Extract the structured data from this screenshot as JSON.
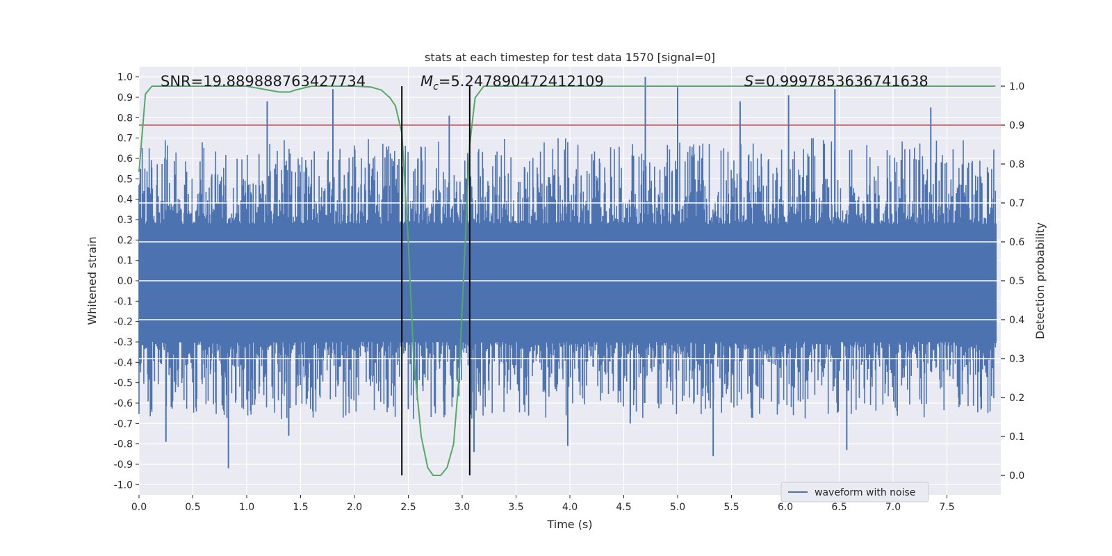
{
  "chart_data": {
    "type": "line",
    "title": "stats at each timestep for test data 1570 [signal=0]",
    "xlabel": "Time (s)",
    "ylabel": "Whitened strain",
    "y2label": "Detection probability",
    "xlim": [
      0.0,
      8.0
    ],
    "ylim": [
      -1.05,
      1.05
    ],
    "y2lim": [
      -0.05,
      1.05
    ],
    "x_ticks": [
      "0.0",
      "0.5",
      "1.0",
      "1.5",
      "2.0",
      "2.5",
      "3.0",
      "3.5",
      "4.0",
      "4.5",
      "5.0",
      "5.5",
      "6.0",
      "6.5",
      "7.0",
      "7.5"
    ],
    "y_ticks": [
      "1.0",
      "0.9",
      "0.8",
      "0.7",
      "0.6",
      "0.5",
      "0.4",
      "0.3",
      "0.2",
      "0.1",
      "0.0",
      "-0.1",
      "-0.2",
      "-0.3",
      "-0.4",
      "-0.5",
      "-0.6",
      "-0.7",
      "-0.8",
      "-0.9",
      "-1.0"
    ],
    "y2_ticks": [
      "1.0",
      "0.9",
      "0.8",
      "0.7",
      "0.6",
      "0.5",
      "0.4",
      "0.3",
      "0.2",
      "0.1",
      "0.0"
    ],
    "grid": true,
    "legend": {
      "position": "lower-right",
      "entries": [
        "waveform with noise"
      ]
    },
    "annotations": {
      "snr": {
        "label": "SNR",
        "value": "19.889888763427734"
      },
      "mc": {
        "label": "M",
        "subscript": "c",
        "value": "5.247890472412109"
      },
      "s": {
        "label": "S",
        "value": "0.9997853636741638"
      }
    },
    "threshold_y2": 0.9,
    "event_window_x": [
      2.44,
      3.07
    ],
    "series": [
      {
        "name": "waveform with noise",
        "axis": "left",
        "representation": "noise-like strain, peaks listed",
        "peaks": [
          [
            1.19,
            0.88
          ],
          [
            1.8,
            0.94
          ],
          [
            2.59,
            0.6
          ],
          [
            2.88,
            0.81
          ],
          [
            4.7,
            1.0
          ],
          [
            5.0,
            0.95
          ],
          [
            5.58,
            0.88
          ],
          [
            6.03,
            0.91
          ],
          [
            6.46,
            0.94
          ],
          [
            7.35,
            0.85
          ],
          [
            0.83,
            -0.92
          ],
          [
            0.25,
            -0.79
          ],
          [
            1.39,
            -0.76
          ],
          [
            3.11,
            -0.84
          ],
          [
            3.98,
            -0.81
          ],
          [
            5.33,
            -0.86
          ],
          [
            6.57,
            -0.83
          ],
          [
            2.5,
            -0.63
          ],
          [
            4.56,
            -0.7
          ]
        ],
        "color": "#4c72b0"
      },
      {
        "name": "",
        "axis": "right",
        "color": "#55a868",
        "x": [
          0.0,
          0.06,
          0.12,
          0.3,
          0.6,
          1.0,
          1.2,
          1.3,
          1.35,
          1.4,
          1.45,
          1.6,
          2.0,
          2.15,
          2.25,
          2.33,
          2.38,
          2.44,
          2.5,
          2.55,
          2.62,
          2.68,
          2.73,
          2.8,
          2.86,
          2.92,
          2.97,
          3.02,
          3.07,
          3.12,
          3.2,
          3.35,
          4.0,
          5.0,
          6.0,
          7.0,
          7.95
        ],
        "y": [
          0.78,
          0.98,
          1.0,
          1.0,
          1.0,
          1.0,
          0.99,
          0.985,
          0.985,
          0.985,
          0.99,
          1.0,
          1.0,
          0.998,
          0.99,
          0.97,
          0.95,
          0.88,
          0.6,
          0.3,
          0.1,
          0.02,
          0.0,
          0.0,
          0.02,
          0.08,
          0.25,
          0.55,
          0.85,
          0.97,
          1.0,
          1.0,
          1.0,
          1.0,
          1.0,
          1.0,
          1.0
        ]
      }
    ]
  }
}
